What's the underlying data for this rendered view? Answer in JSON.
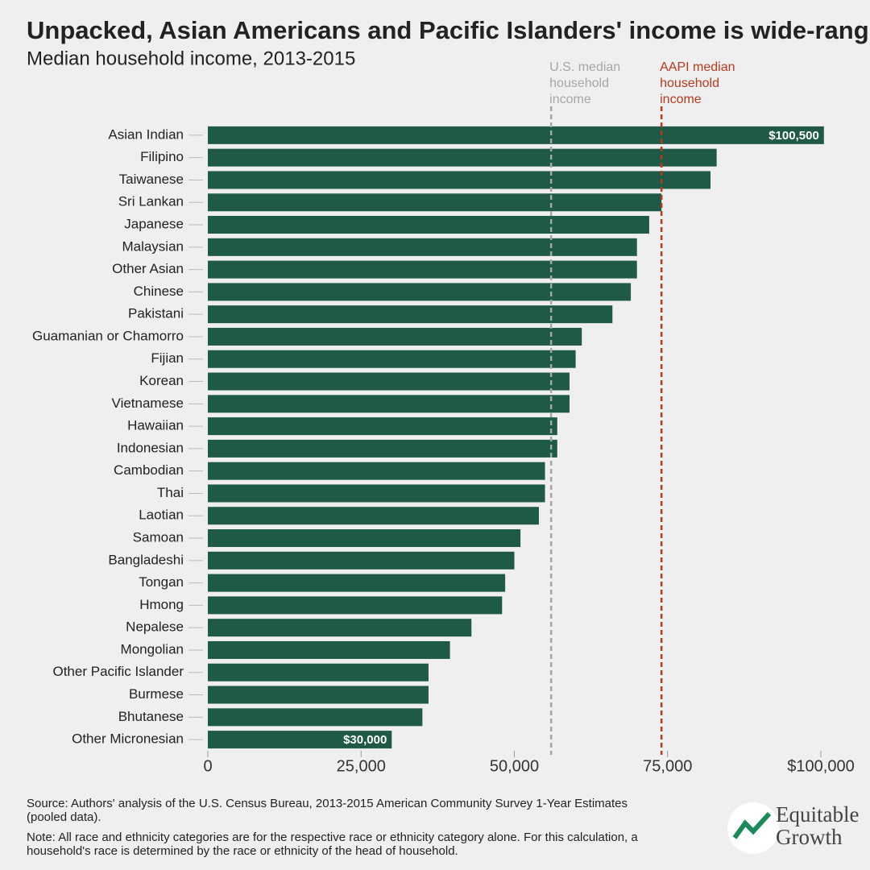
{
  "chart_data": {
    "type": "bar",
    "orientation": "horizontal",
    "title": "Unpacked, Asian Americans and Pacific Islanders' income is wide-ranging",
    "subtitle": "Median household income, 2013-2015",
    "categories": [
      "Asian Indian",
      "Filipino",
      "Taiwanese",
      "Sri Lankan",
      "Japanese",
      "Malaysian",
      "Other Asian",
      "Chinese",
      "Pakistani",
      "Guamanian or Chamorro",
      "Fijian",
      "Korean",
      "Vietnamese",
      "Hawaiian",
      "Indonesian",
      "Cambodian",
      "Thai",
      "Laotian",
      "Samoan",
      "Bangladeshi",
      "Tongan",
      "Hmong",
      "Nepalese",
      "Mongolian",
      "Other Pacific Islander",
      "Burmese",
      "Bhutanese",
      "Other Micronesian"
    ],
    "values": [
      100500,
      83000,
      82000,
      74000,
      72000,
      70000,
      70000,
      69000,
      66000,
      61000,
      60000,
      59000,
      59000,
      57000,
      57000,
      55000,
      55000,
      54000,
      51000,
      50000,
      48500,
      48000,
      43000,
      39500,
      36000,
      36000,
      35000,
      30000
    ],
    "value_labels": [
      "$100,500",
      null,
      null,
      null,
      null,
      null,
      null,
      null,
      null,
      null,
      null,
      null,
      null,
      null,
      null,
      null,
      null,
      null,
      null,
      null,
      null,
      null,
      null,
      null,
      null,
      null,
      null,
      "$30,000"
    ],
    "color": "#1e5a45",
    "xlim": [
      0,
      100000
    ],
    "xticks": [
      0,
      {
        "value": 25000,
        "label": "25,000"
      },
      {
        "value": 50000,
        "label": "50,000"
      },
      {
        "value": 75000,
        "label": "75,000"
      },
      {
        "value": 100000,
        "label": "$100,000"
      }
    ],
    "reference_lines": [
      {
        "label": [
          "U.S. median",
          "household",
          "income"
        ],
        "value": 56000,
        "color": "#a6a6a6"
      },
      {
        "label": [
          "AAPI median",
          "household",
          "income"
        ],
        "value": 74000,
        "color": "#b5391f"
      }
    ],
    "source": [
      "Source: Authors' analysis of the U.S. Census Bureau, 2013-2015 American Community Survey 1-Year Estimates",
      "(pooled data)."
    ],
    "note": [
      "Note: All race and ethnicity categories are for the respective race or ethnicity category alone. For this calculation, a",
      "household's race is determined by the race or ethnicity of the head of household."
    ],
    "logo": [
      "Equitable",
      "Growth"
    ]
  }
}
